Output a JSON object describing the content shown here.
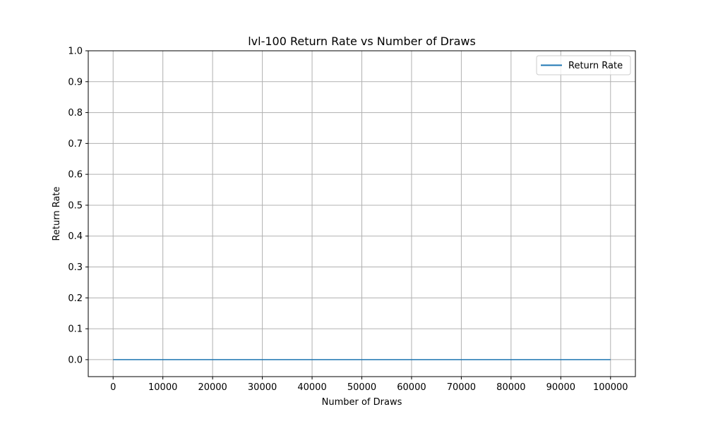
{
  "chart_data": {
    "type": "line",
    "title": "lvl-100 Return Rate vs Number of Draws",
    "xlabel": "Number of Draws",
    "ylabel": "Return Rate",
    "xlim": [
      -5000,
      105000
    ],
    "ylim": [
      -0.055,
      1.0
    ],
    "xticks": [
      0,
      10000,
      20000,
      30000,
      40000,
      50000,
      60000,
      70000,
      80000,
      90000,
      100000
    ],
    "yticks": [
      0.0,
      0.1,
      0.2,
      0.3,
      0.4,
      0.5,
      0.6,
      0.7,
      0.8,
      0.9,
      1.0
    ],
    "grid": true,
    "legend_position": "top-right",
    "series": [
      {
        "name": "Return Rate",
        "color": "#1f77b4",
        "x": [
          0,
          10000,
          20000,
          30000,
          40000,
          50000,
          60000,
          70000,
          80000,
          90000,
          100000
        ],
        "values": [
          0.0,
          0.0,
          0.0,
          0.0,
          0.0,
          0.0,
          0.0,
          0.0,
          0.0,
          0.0,
          0.0
        ]
      }
    ],
    "colors": {
      "grid": "#b0b0b0",
      "axes": "#000000",
      "legend_border": "#cccccc"
    }
  }
}
